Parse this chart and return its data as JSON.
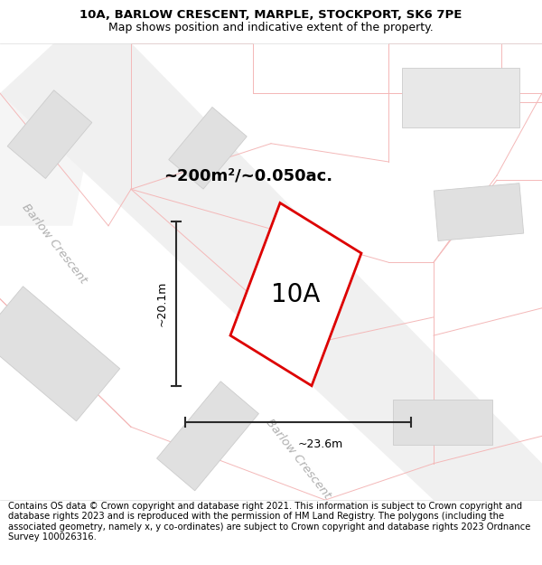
{
  "title_line1": "10A, BARLOW CRESCENT, MARPLE, STOCKPORT, SK6 7PE",
  "title_line2": "Map shows position and indicative extent of the property.",
  "footer_text": "Contains OS data © Crown copyright and database right 2021. This information is subject to Crown copyright and database rights 2023 and is reproduced with the permission of HM Land Registry. The polygons (including the associated geometry, namely x, y co-ordinates) are subject to Crown copyright and database rights 2023 Ordnance Survey 100026316.",
  "area_label": "~200m²/~0.050ac.",
  "label_10A": "10A",
  "dim_width": "~23.6m",
  "dim_height": "~20.1m",
  "street_label": "Barlow Crescent",
  "pink": "#f4b8b8",
  "gray_fill": "#e0e0e0",
  "gray_edge": "#cccccc",
  "red_outline": "#dd0000",
  "title_fontsize": 9.5,
  "footer_fontsize": 7.2,
  "map_bg": "#ffffff"
}
